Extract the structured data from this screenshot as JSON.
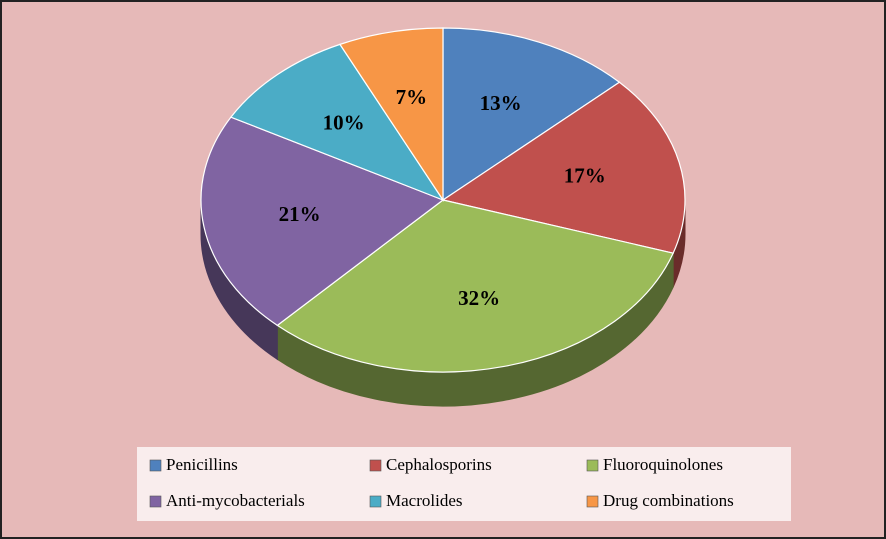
{
  "chart_data": {
    "type": "pie",
    "categories": [
      "Penicillins",
      "Cephalosporins",
      "Fluoroquinolones",
      "Anti-mycobacterials",
      "Macrolides",
      "Drug combinations"
    ],
    "values": [
      13,
      17,
      32,
      21,
      10,
      7
    ],
    "value_labels": [
      "13%",
      "17%",
      "32%",
      "21%",
      "10%",
      "7%"
    ],
    "colors": [
      "#4f81bd",
      "#c0504d",
      "#9bbb59",
      "#8064a2",
      "#4bacc6",
      "#f79646"
    ],
    "legend": "bottom"
  }
}
